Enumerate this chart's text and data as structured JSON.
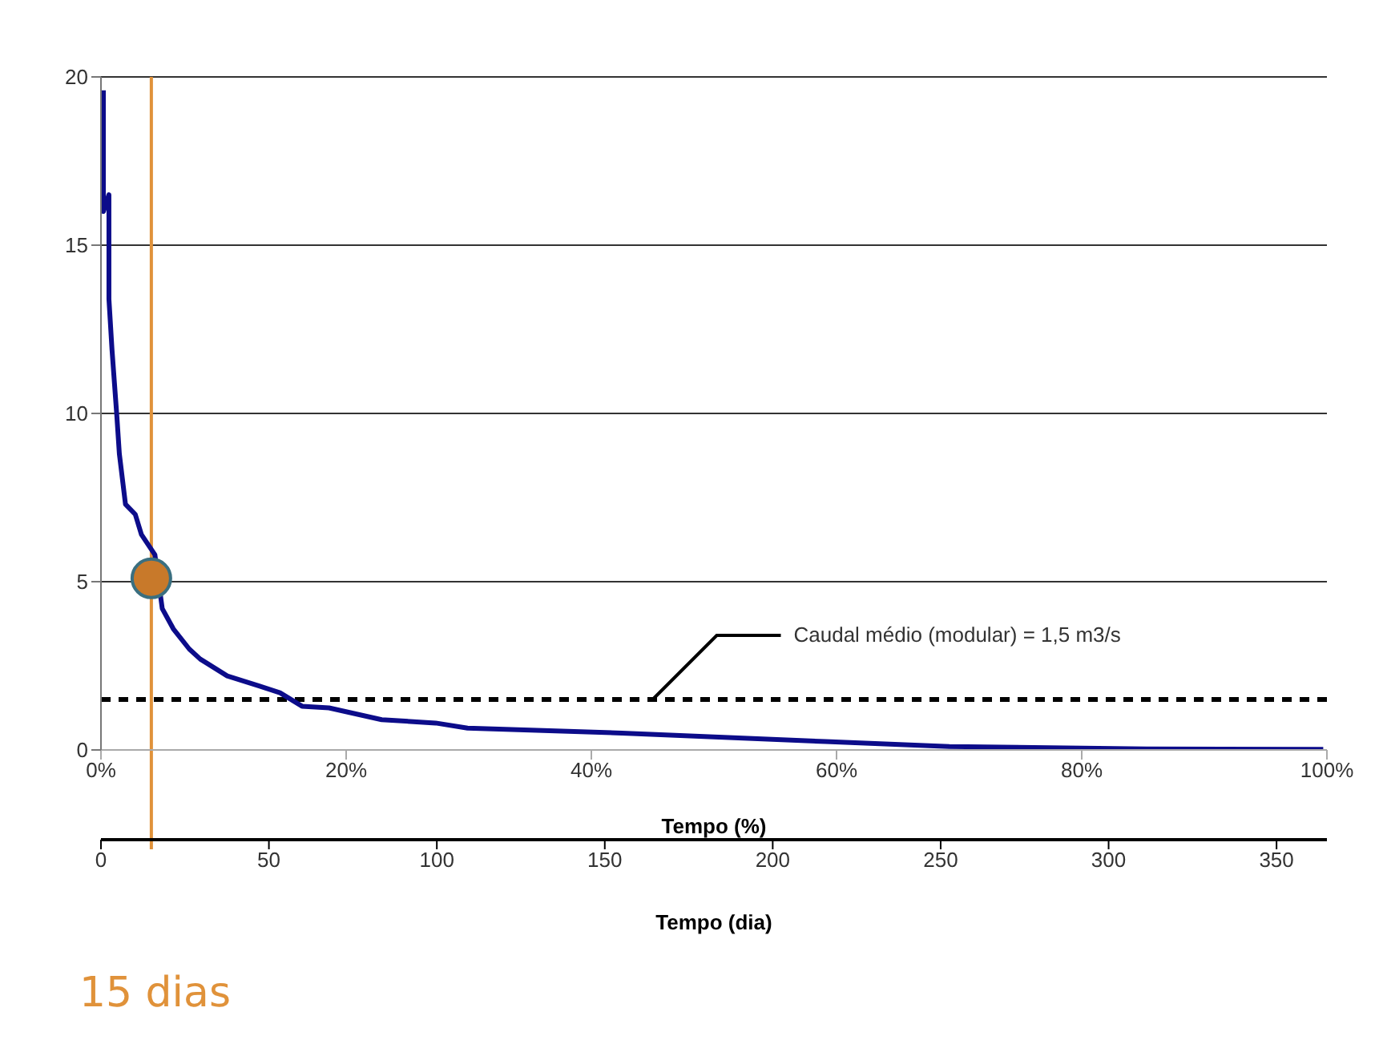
{
  "chart_data": {
    "type": "line",
    "xlabel": "Tempo (%)",
    "x2label": "Tempo (dia)",
    "xlim": [
      0,
      100
    ],
    "xticks": [
      {
        "value": 0,
        "label": "0%"
      },
      {
        "value": 20,
        "label": "20%"
      },
      {
        "value": 40,
        "label": "40%"
      },
      {
        "value": 60,
        "label": "60%"
      },
      {
        "value": 80,
        "label": "80%"
      },
      {
        "value": 100,
        "label": "100%"
      }
    ],
    "x2lim": [
      0,
      365
    ],
    "x2ticks": [
      0,
      50,
      100,
      150,
      200,
      250,
      300,
      350
    ],
    "ylim": [
      0,
      20
    ],
    "yticks": [
      0,
      5,
      10,
      15,
      20
    ],
    "grid": "y",
    "legend": false,
    "marker": "none",
    "line_style": "solid",
    "series": [
      {
        "color": "#0c0c8a",
        "x": [
          0.2,
          0.2,
          0.65,
          0.65,
          0.9,
          1.1,
          1.3,
          1.5,
          2.0,
          2.8,
          3.3,
          4.4,
          5.0,
          5.9,
          7.2,
          8.1,
          10.3,
          12.9,
          14.6,
          16.4,
          18.6,
          22.9,
          27.3,
          29.9,
          42.5,
          59.1,
          69.2,
          85.3,
          99.7
        ],
        "values": [
          19.6,
          16.0,
          16.5,
          13.4,
          11.9,
          10.9,
          9.9,
          8.8,
          7.3,
          7.0,
          6.4,
          5.8,
          4.2,
          3.6,
          3.0,
          2.7,
          2.2,
          1.9,
          1.7,
          1.3,
          1.25,
          0.9,
          0.8,
          0.65,
          0.5,
          0.25,
          0.1,
          0.03,
          0.02
        ]
      },
      {
        "type": "scatter",
        "axis": "x2",
        "marker": "circle",
        "color": "#c8792a",
        "x": [
          15
        ],
        "values": [
          5.1
        ]
      }
    ],
    "ref_lines": [
      {
        "axis": "y",
        "value": 1.5,
        "label": "Caudal médio (modular) = 1,5 m3/s",
        "line_style": "dashed",
        "color": "#000000"
      },
      {
        "axis": "x2",
        "value": 15,
        "label": "15 dias",
        "color": "#e0923a"
      }
    ]
  }
}
